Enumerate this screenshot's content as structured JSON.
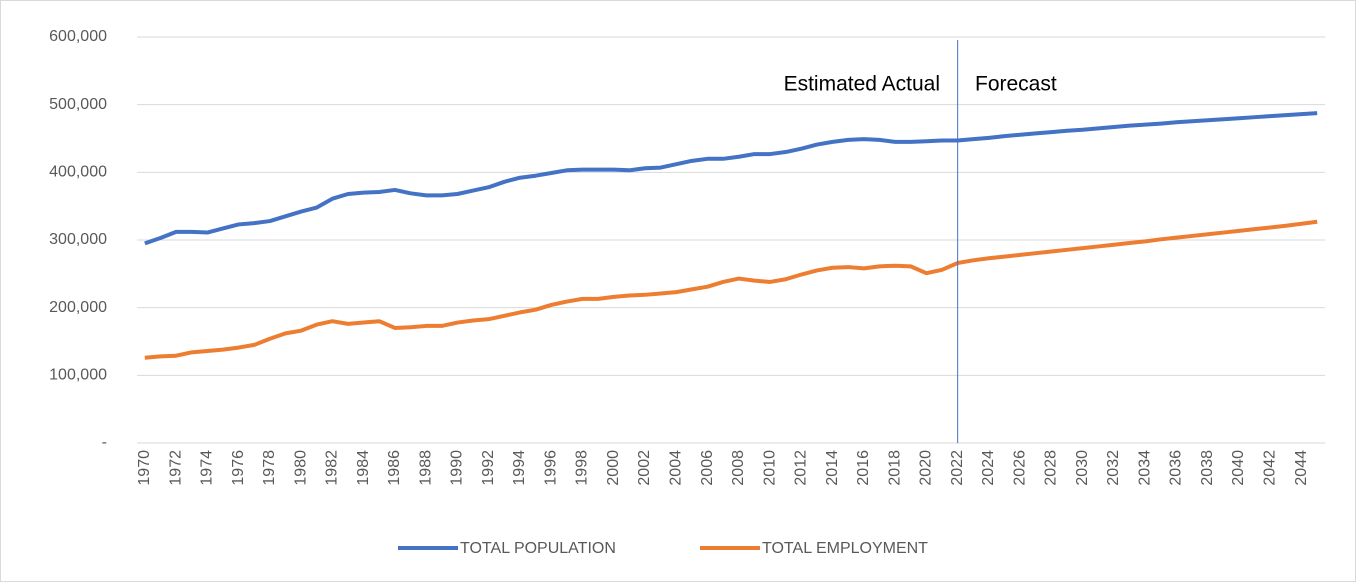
{
  "chart_data": {
    "type": "line",
    "x": [
      1970,
      1971,
      1972,
      1973,
      1974,
      1975,
      1976,
      1977,
      1978,
      1979,
      1980,
      1981,
      1982,
      1983,
      1984,
      1985,
      1986,
      1987,
      1988,
      1989,
      1990,
      1991,
      1992,
      1993,
      1994,
      1995,
      1996,
      1997,
      1998,
      1999,
      2000,
      2001,
      2002,
      2003,
      2004,
      2005,
      2006,
      2007,
      2008,
      2009,
      2010,
      2011,
      2012,
      2013,
      2014,
      2015,
      2016,
      2017,
      2018,
      2019,
      2020,
      2021,
      2022,
      2023,
      2024,
      2025,
      2026,
      2027,
      2028,
      2029,
      2030,
      2031,
      2032,
      2033,
      2034,
      2035,
      2036,
      2037,
      2038,
      2039,
      2040,
      2041,
      2042,
      2043,
      2044,
      2045
    ],
    "series": [
      {
        "name": "TOTAL POPULATION",
        "color": "#4472c4",
        "values": [
          295000,
          303000,
          312000,
          312000,
          311000,
          317000,
          323000,
          325000,
          328000,
          335000,
          342000,
          348000,
          361000,
          368000,
          370000,
          371000,
          374000,
          369000,
          366000,
          366000,
          368000,
          373000,
          378000,
          386000,
          392000,
          395000,
          399000,
          403000,
          404000,
          404000,
          404000,
          403000,
          406000,
          407000,
          412000,
          417000,
          420000,
          420000,
          423000,
          427000,
          427000,
          430000,
          435000,
          441000,
          445000,
          448000,
          449000,
          448000,
          445000,
          445000,
          446000,
          447000,
          447000,
          449000,
          451000,
          453500,
          455500,
          457500,
          459500,
          461500,
          463000,
          465000,
          467000,
          469000,
          470500,
          472000,
          474000,
          475500,
          477000,
          478500,
          480000,
          481500,
          483000,
          484500,
          486000,
          487500
        ]
      },
      {
        "name": "TOTAL EMPLOYMENT",
        "color": "#ed7d31",
        "values": [
          126000,
          128000,
          129000,
          134000,
          136000,
          138000,
          141000,
          145000,
          154000,
          162000,
          166000,
          175000,
          180000,
          176000,
          178000,
          180000,
          170000,
          171000,
          173000,
          173000,
          178000,
          181000,
          183000,
          188000,
          193000,
          197000,
          204000,
          209000,
          213000,
          213000,
          216000,
          218000,
          219000,
          221000,
          223000,
          227000,
          231000,
          238000,
          243000,
          240000,
          238000,
          242000,
          249000,
          255000,
          259000,
          260000,
          258000,
          261000,
          262000,
          261000,
          251000,
          256000,
          266000,
          270000,
          273000,
          275500,
          278000,
          280500,
          283000,
          285500,
          288000,
          290500,
          293000,
          295500,
          298000,
          301000,
          303500,
          306000,
          308500,
          311000,
          313500,
          316000,
          318500,
          321000,
          324000,
          327000
        ]
      }
    ],
    "xlim": [
      1969.5,
      2045.5
    ],
    "xticks": [
      1970,
      1972,
      1974,
      1976,
      1978,
      1980,
      1982,
      1984,
      1986,
      1988,
      1990,
      1992,
      1994,
      1996,
      1998,
      2000,
      2002,
      2004,
      2006,
      2008,
      2010,
      2012,
      2014,
      2016,
      2018,
      2020,
      2022,
      2024,
      2026,
      2028,
      2030,
      2032,
      2034,
      2036,
      2038,
      2040,
      2042,
      2044
    ],
    "ylim": [
      0,
      600000
    ],
    "yticks": [
      {
        "value": 0,
        "label": "-"
      },
      {
        "value": 100000,
        "label": "100,000"
      },
      {
        "value": 200000,
        "label": "200,000"
      },
      {
        "value": 300000,
        "label": "300,000"
      },
      {
        "value": 400000,
        "label": "400,000"
      },
      {
        "value": 500000,
        "label": "500,000"
      },
      {
        "value": 600000,
        "label": "600,000"
      }
    ],
    "grid": true,
    "divider_x": 2022,
    "annotations": [
      "Estimated Actual",
      "Forecast"
    ],
    "legend": "bottom"
  }
}
